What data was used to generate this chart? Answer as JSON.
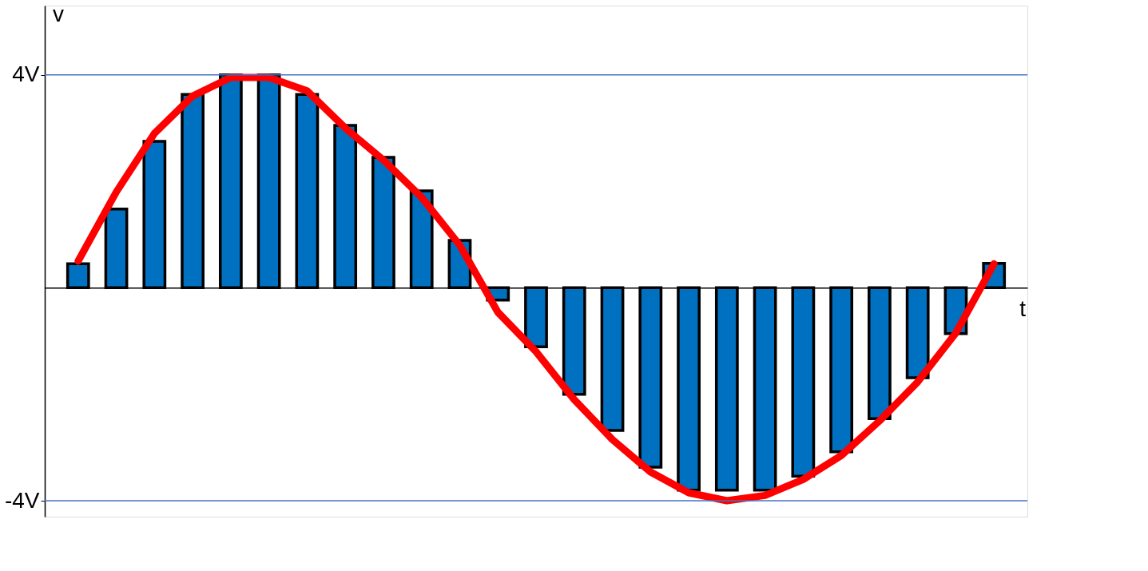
{
  "chart_data": {
    "type": "bar",
    "xlabel": "t",
    "ylabel": "v",
    "ylim": [
      -4.3,
      5.3
    ],
    "yticks": [
      {
        "value": 4,
        "label": "4V"
      },
      {
        "value": -4,
        "label": "-4V"
      }
    ],
    "tick_labels": "y",
    "categories": [
      null,
      null,
      null,
      null,
      null,
      null,
      null,
      null,
      null,
      null,
      null,
      null,
      null,
      null,
      null,
      null,
      null,
      null,
      null,
      null,
      null,
      null,
      null,
      null,
      null
    ],
    "ref_lines": [
      {
        "axis": "y",
        "value": 4,
        "color": "#4472c4"
      },
      {
        "axis": "y",
        "value": -4,
        "color": "#4472c4"
      }
    ],
    "series": [
      {
        "color": "#0070c0",
        "values": [
          0.45,
          1.48,
          2.75,
          3.63,
          4.0,
          4.0,
          3.63,
          3.05,
          2.45,
          1.82,
          0.89,
          -0.23,
          -1.11,
          -2.0,
          -2.68,
          -3.37,
          -3.8,
          -3.8,
          -3.8,
          -3.54,
          -3.08,
          -2.46,
          -1.69,
          -0.86,
          0.46
        ]
      },
      {
        "type": "line",
        "color": "#ff0000",
        "values": [
          0.5,
          1.8,
          2.9,
          3.6,
          3.95,
          3.95,
          3.7,
          3.0,
          2.4,
          1.7,
          0.8,
          -0.46,
          -1.2,
          -2.1,
          -2.85,
          -3.46,
          -3.85,
          -4.0,
          -3.9,
          -3.6,
          -3.15,
          -2.5,
          -1.77,
          -0.85,
          0.45
        ]
      }
    ]
  }
}
